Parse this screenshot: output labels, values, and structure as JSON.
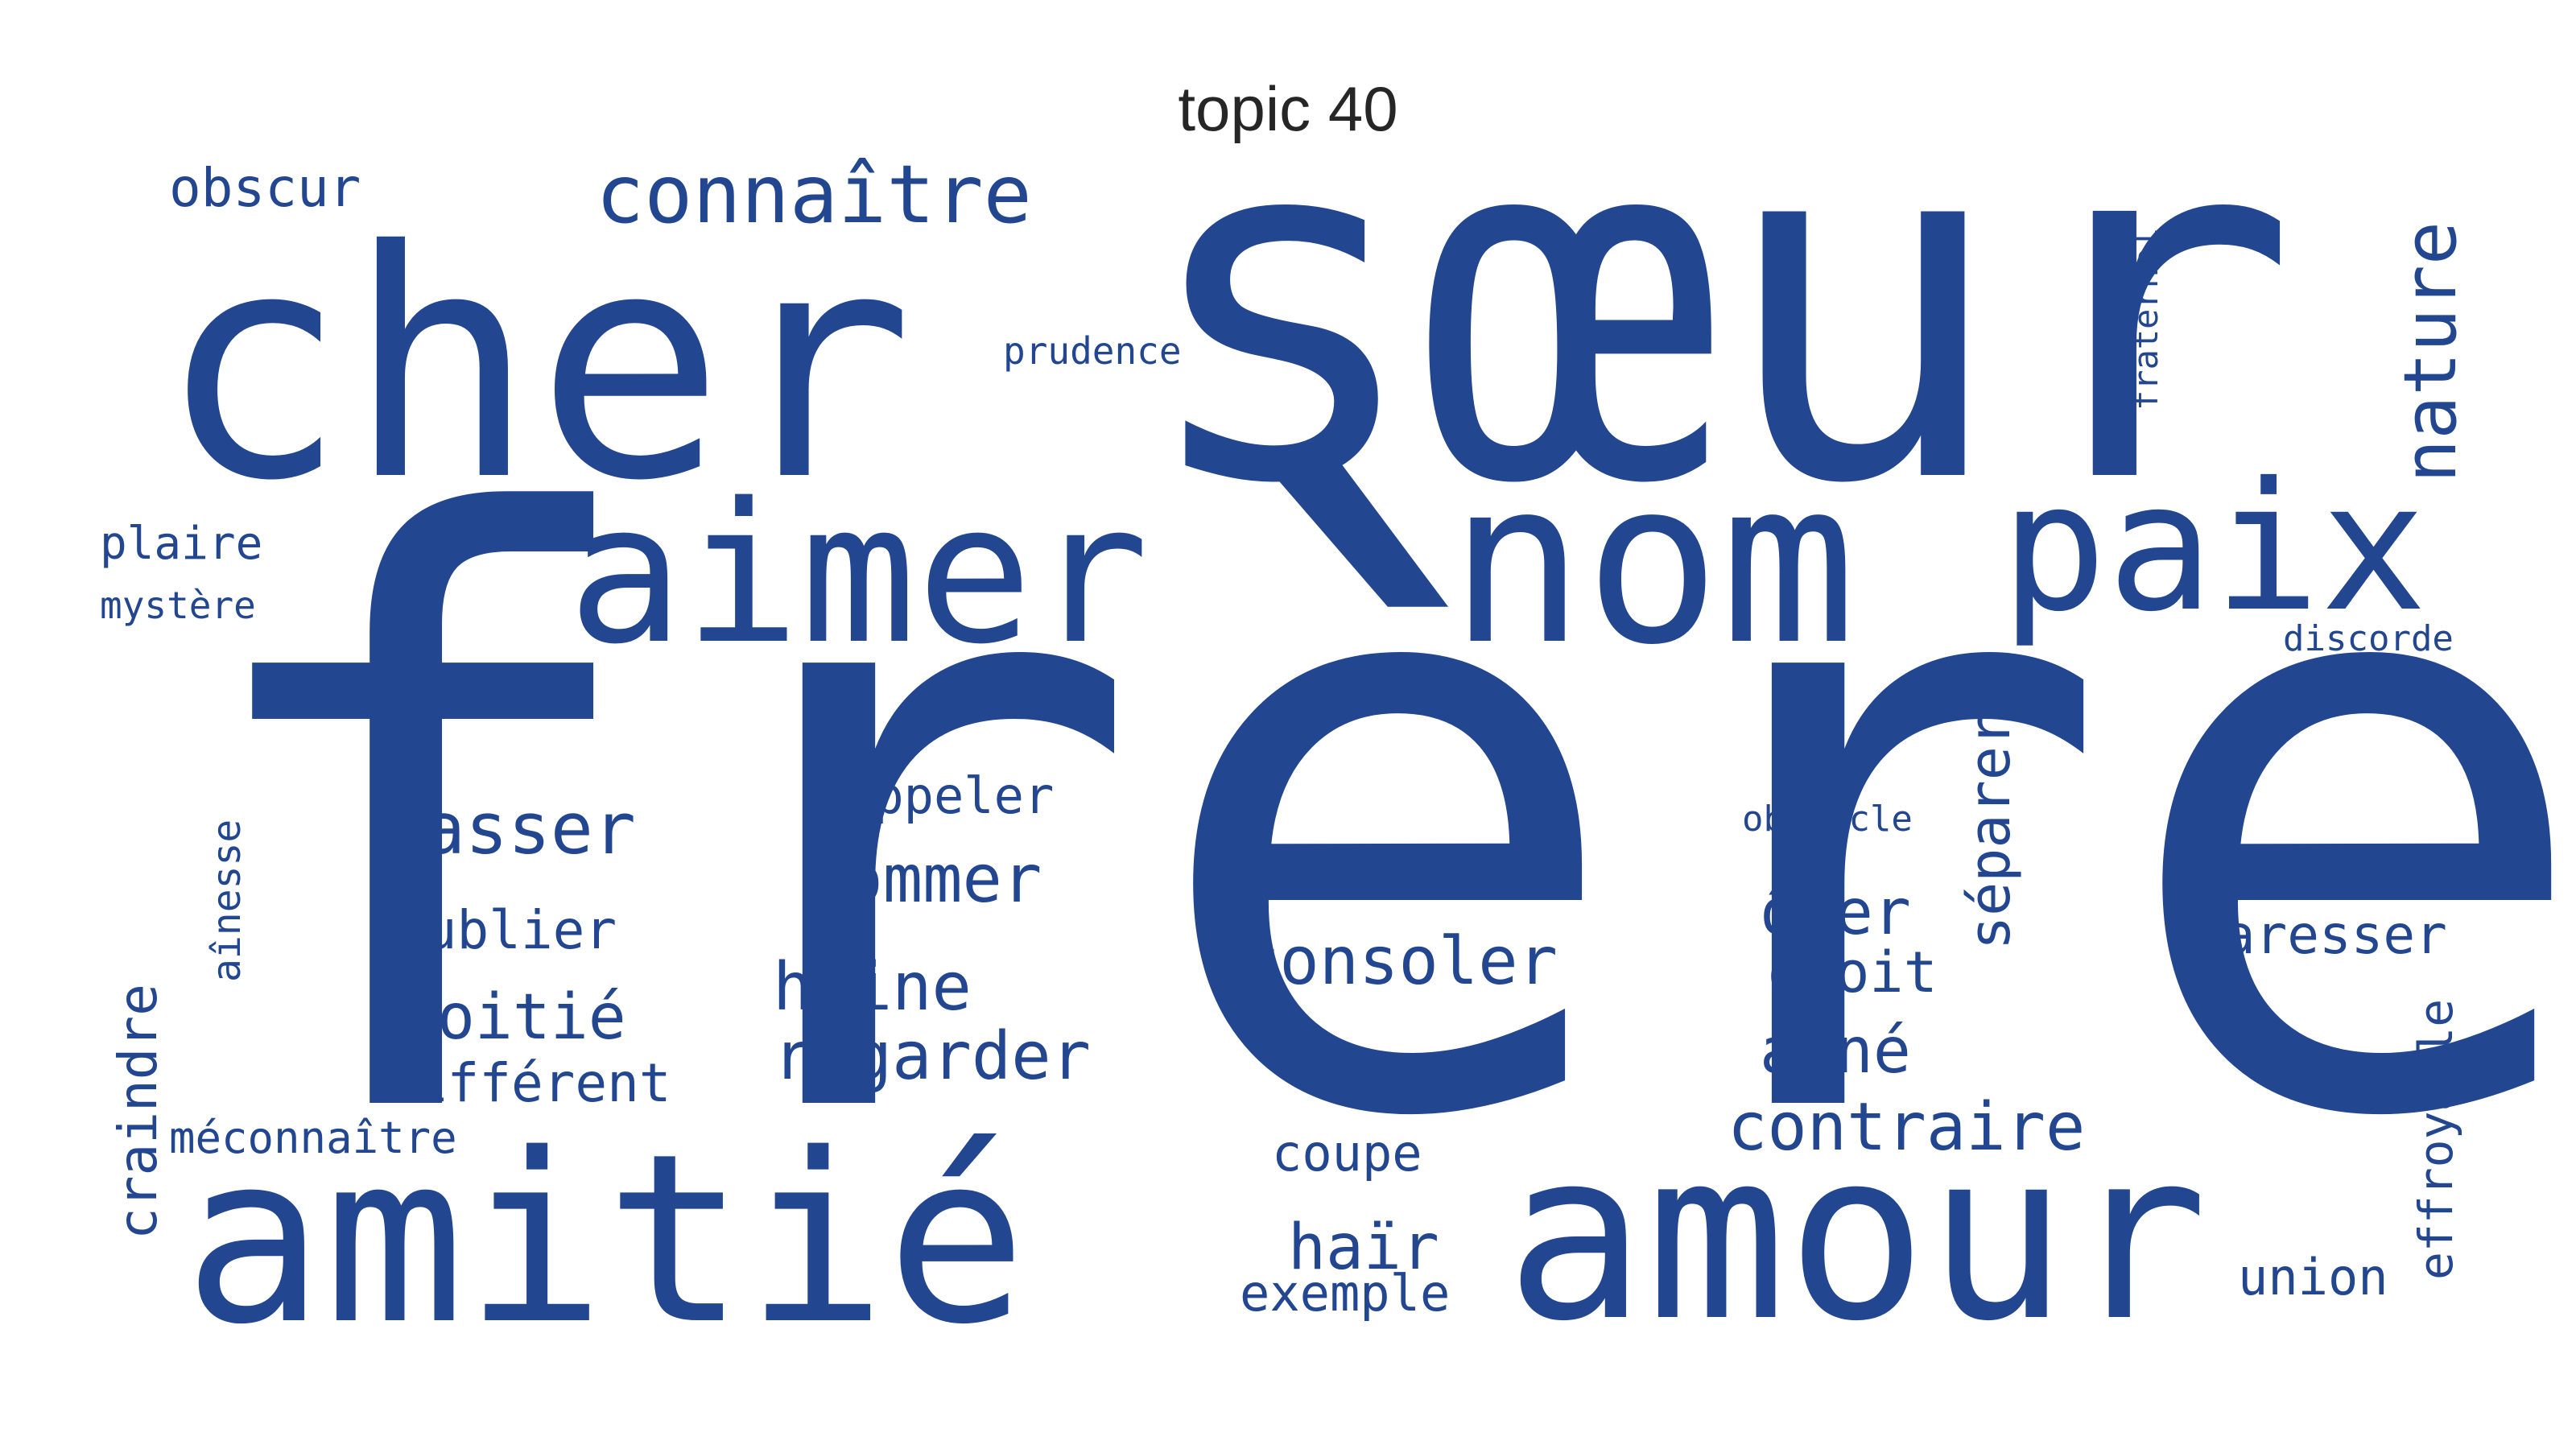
{
  "title": "topic 40",
  "color": "#22468f",
  "words": [
    {
      "text": "frère",
      "weight": 1.0
    },
    {
      "text": "sœur",
      "weight": 0.62
    },
    {
      "text": "cher",
      "weight": 0.45
    },
    {
      "text": "amitié",
      "weight": 0.34
    },
    {
      "text": "amour",
      "weight": 0.33
    },
    {
      "text": "nom",
      "weight": 0.3
    },
    {
      "text": "aimer",
      "weight": 0.26
    },
    {
      "text": "paix",
      "weight": 0.24
    },
    {
      "text": "connaître",
      "weight": 0.12
    },
    {
      "text": "nature",
      "weight": 0.09
    },
    {
      "text": "passer",
      "weight": 0.1
    },
    {
      "text": "consoler",
      "weight": 0.09
    },
    {
      "text": "regarder",
      "weight": 0.09
    },
    {
      "text": "nommer",
      "weight": 0.09
    },
    {
      "text": "haine",
      "weight": 0.09
    },
    {
      "text": "moitié",
      "weight": 0.09
    },
    {
      "text": "contraire",
      "weight": 0.09
    },
    {
      "text": "obscur",
      "weight": 0.08
    },
    {
      "text": "oublier",
      "weight": 0.08
    },
    {
      "text": "haïr",
      "weight": 0.08
    },
    {
      "text": "séparer",
      "weight": 0.08
    },
    {
      "text": "ôter",
      "weight": 0.08
    },
    {
      "text": "aîné",
      "weight": 0.08
    },
    {
      "text": "caresser",
      "weight": 0.07
    },
    {
      "text": "craindre",
      "weight": 0.07
    },
    {
      "text": "droit",
      "weight": 0.07
    },
    {
      "text": "différent",
      "weight": 0.07
    },
    {
      "text": "appeler",
      "weight": 0.07
    },
    {
      "text": "coupe",
      "weight": 0.07
    },
    {
      "text": "exemple",
      "weight": 0.07
    },
    {
      "text": "union",
      "weight": 0.07
    },
    {
      "text": "effroyable",
      "weight": 0.07
    },
    {
      "text": "plaire",
      "weight": 0.06
    },
    {
      "text": "méconnaître",
      "weight": 0.06
    },
    {
      "text": "aînesse",
      "weight": 0.05
    },
    {
      "text": "prudence",
      "weight": 0.05
    },
    {
      "text": "discorde",
      "weight": 0.05
    },
    {
      "text": "obstacle",
      "weight": 0.05
    },
    {
      "text": "mystère",
      "weight": 0.05
    },
    {
      "text": "fraternel",
      "weight": 0.05
    }
  ]
}
